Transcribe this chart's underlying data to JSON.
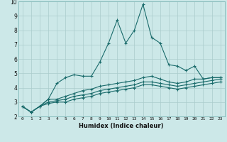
{
  "xlabel": "Humidex (Indice chaleur)",
  "ylabel": "",
  "bg_color": "#cce8e8",
  "grid_color": "#aacccc",
  "line_color": "#1a6b6b",
  "xlim": [
    -0.5,
    23.5
  ],
  "ylim": [
    2,
    10
  ],
  "yticks": [
    2,
    3,
    4,
    5,
    6,
    7,
    8,
    9,
    10
  ],
  "xticks": [
    0,
    1,
    2,
    3,
    4,
    5,
    6,
    7,
    8,
    9,
    10,
    11,
    12,
    13,
    14,
    15,
    16,
    17,
    18,
    19,
    20,
    21,
    22,
    23
  ],
  "series": [
    [
      2.7,
      2.3,
      2.7,
      3.2,
      4.3,
      4.7,
      4.9,
      4.8,
      4.8,
      5.8,
      7.1,
      8.7,
      7.1,
      8.0,
      9.8,
      7.5,
      7.1,
      5.6,
      5.5,
      5.2,
      5.5,
      4.6,
      4.7,
      4.7
    ],
    [
      2.7,
      2.3,
      2.7,
      3.2,
      3.2,
      3.4,
      3.6,
      3.8,
      3.9,
      4.1,
      4.2,
      4.3,
      4.4,
      4.5,
      4.7,
      4.8,
      4.6,
      4.4,
      4.3,
      4.4,
      4.6,
      4.6,
      4.7,
      4.7
    ],
    [
      2.7,
      2.3,
      2.7,
      3.0,
      3.1,
      3.2,
      3.4,
      3.5,
      3.6,
      3.8,
      3.9,
      4.0,
      4.1,
      4.2,
      4.4,
      4.4,
      4.3,
      4.2,
      4.1,
      4.2,
      4.3,
      4.4,
      4.5,
      4.6
    ],
    [
      2.7,
      2.3,
      2.7,
      2.9,
      3.0,
      3.0,
      3.2,
      3.3,
      3.4,
      3.6,
      3.7,
      3.8,
      3.9,
      4.0,
      4.2,
      4.2,
      4.1,
      4.0,
      3.9,
      4.0,
      4.1,
      4.2,
      4.3,
      4.4
    ]
  ]
}
